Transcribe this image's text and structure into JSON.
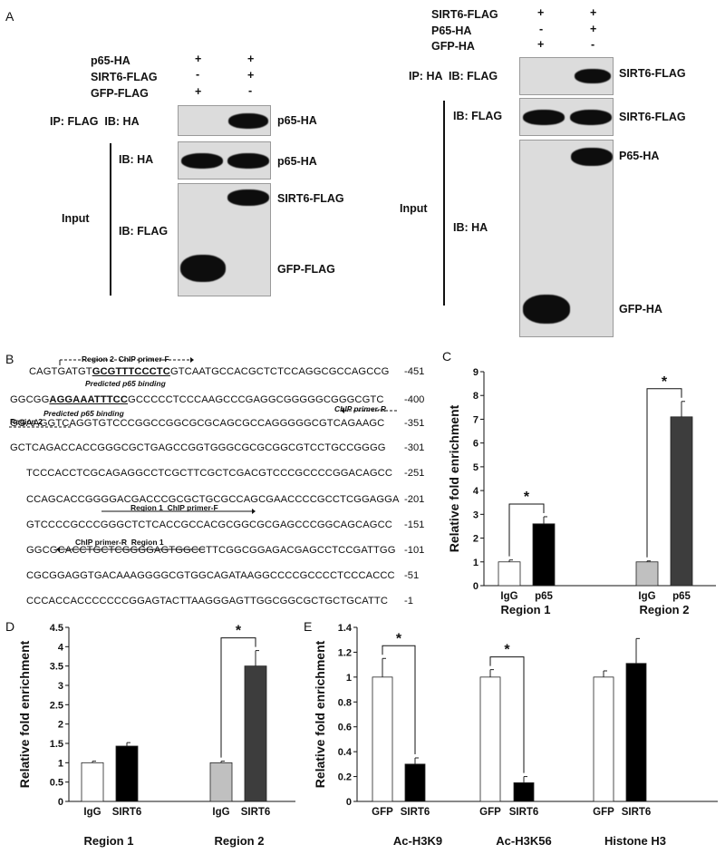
{
  "panel_letters": {
    "a": "A",
    "b": "B",
    "c": "C",
    "d": "D",
    "e": "E"
  },
  "panelA_left": {
    "conditions": [
      {
        "label": "p65-HA",
        "lane1": "+",
        "lane2": "+"
      },
      {
        "label": "SIRT6-FLAG",
        "lane1": "-",
        "lane2": "+"
      },
      {
        "label": "GFP-FLAG",
        "lane1": "+",
        "lane2": "-"
      }
    ],
    "ip_label": "IP: FLAG  IB: HA",
    "input_label": "Input",
    "ib_ha": "IB: HA",
    "ib_flag": "IB: FLAG",
    "band_labels": {
      "ip": "p65-HA",
      "input_ha": "p65-HA",
      "sirt6": "SIRT6-FLAG",
      "gfp": "GFP-FLAG"
    }
  },
  "panelA_right": {
    "conditions": [
      {
        "label": "SIRT6-FLAG",
        "lane1": "+",
        "lane2": "+"
      },
      {
        "label": "P65-HA",
        "lane1": "-",
        "lane2": "+"
      },
      {
        "label": "GFP-HA",
        "lane1": "+",
        "lane2": "-"
      }
    ],
    "ip_label": "IP: HA  IB: FLAG",
    "ib_flag": "IB: FLAG",
    "input_label": "Input",
    "ib_ha": "IB: HA",
    "band_labels": {
      "ip": "SIRT6-FLAG",
      "input_flag": "SIRT6-FLAG",
      "p65": "P65-HA",
      "gfp": "GFP-HA"
    }
  },
  "panelB": {
    "annotations": {
      "region2_primer_f": "Region 2  ChIP primer-F",
      "predicted1": "Predicted p65 binding",
      "predicted2": "Predicted p65 binding",
      "region2_primer_r": "ChIP primer-R",
      "region2_label": "Region 2",
      "region1_primer_f": "Region 1  ChIP primer-F",
      "region1_primer_r": "ChIP primer-R  Region 1"
    },
    "lines": [
      {
        "pre": "CAGTGATGT",
        "motif": "GCGTTTCCCTC",
        "post": "GTCAATGCCACGCTCTCCAGGCGCCAGCCG",
        "num": "-451"
      },
      {
        "pre": "GGCGG",
        "motif": "AGGAAATTTCC",
        "post": "GCCCCCTCCCAAGCCCGAGGCGGGGGCGGGCGTC",
        "num": "-400"
      },
      {
        "pre": "GGAAGGTCAGGTGTCCCGGCCGGCGCGCAGCGCCAGGGGGCGTCAGAAGC",
        "motif": "",
        "post": "",
        "num": "-351"
      },
      {
        "pre": "GCTCAGACCACCGGGCGCTGAGCCGGTGGGCGCGCGGCGTCCTGCCGGGG",
        "motif": "",
        "post": "",
        "num": "-301"
      },
      {
        "pre": "TCCCACCTCGCAGAGGCCTCGCTTCGCTCGACGTCCCGCCCCGGACAGCC",
        "motif": "",
        "post": "",
        "num": "-251"
      },
      {
        "pre": "CCAGCACCGGGGACGACCCGCGCTGCGCCAGCGAACCCCGCCTCGGAGGA",
        "motif": "",
        "post": "",
        "num": "-201"
      },
      {
        "pre": "GTCCCCGCCCGGGCTCTCACCGCCACGCGGCGCGAGCCCGGCAGCAGCC",
        "motif": "",
        "post": "",
        "num": "-151"
      },
      {
        "pre": "GGCGCACCTGCTCGGGGAGTGGCCTTCGGCGGAGACGAGCCTCCGATTGG",
        "motif": "",
        "post": "",
        "num": "-101"
      },
      {
        "pre": "CGCGGAGGTGACAAAGGGGCGTGGCAGATAAGGCCCCGCCCCTCCCACCC",
        "motif": "",
        "post": "",
        "num": "-51"
      },
      {
        "pre": "CCCACCACCCCCCCGGAGTACTTAAGGGAGTTGGCGGCGCTGCTGCATTC",
        "motif": "",
        "post": "",
        "num": "-1"
      }
    ]
  },
  "chart_data": [
    {
      "panel": "C",
      "type": "bar",
      "ylabel": "Relative fold enrichment",
      "ylim": [
        0,
        9
      ],
      "yticks": [
        "0",
        "1",
        "2",
        "3",
        "4",
        "5",
        "6",
        "7",
        "8",
        "9"
      ],
      "groups": [
        "Region 1",
        "Region 2"
      ],
      "bars": [
        {
          "category": "IgG",
          "group": "Region 1",
          "value": 1.0,
          "err": 0.08,
          "color": "#ffffff"
        },
        {
          "category": "p65",
          "group": "Region 1",
          "value": 2.6,
          "err": 0.3,
          "color": "#000000"
        },
        {
          "category": "IgG",
          "group": "Region 2",
          "value": 1.0,
          "err": 0.04,
          "color": "#c0c0c0"
        },
        {
          "category": "p65",
          "group": "Region 2",
          "value": 7.1,
          "err": 0.65,
          "color": "#3d3d3d"
        }
      ],
      "significance": [
        {
          "from": 0,
          "to": 1,
          "label": "*"
        },
        {
          "from": 2,
          "to": 3,
          "label": "*"
        }
      ]
    },
    {
      "panel": "D",
      "type": "bar",
      "ylabel": "Relative fold enrichment",
      "ylim": [
        0,
        4.5
      ],
      "yticks": [
        "0",
        "0.5",
        "1",
        "1.5",
        "2",
        "2.5",
        "3",
        "3.5",
        "4",
        "4.5"
      ],
      "groups": [
        "Region 1",
        "Region 2"
      ],
      "bars": [
        {
          "category": "IgG",
          "group": "Region 1",
          "value": 1.0,
          "err": 0.04,
          "color": "#ffffff"
        },
        {
          "category": "SIRT6",
          "group": "Region 1",
          "value": 1.43,
          "err": 0.09,
          "color": "#000000"
        },
        {
          "category": "IgG",
          "group": "Region 2",
          "value": 1.0,
          "err": 0.04,
          "color": "#c0c0c0"
        },
        {
          "category": "SIRT6",
          "group": "Region 2",
          "value": 3.5,
          "err": 0.4,
          "color": "#3d3d3d"
        }
      ],
      "significance": [
        {
          "from": 2,
          "to": 3,
          "label": "*"
        }
      ]
    },
    {
      "panel": "E",
      "type": "bar",
      "ylabel": "Relative fold enrichment",
      "ylim": [
        0,
        1.4
      ],
      "yticks": [
        "0",
        "0.2",
        "0.4",
        "0.6",
        "0.8",
        "1",
        "1.2",
        "1.4"
      ],
      "groups": [
        "Ac-H3K9",
        "Ac-H3K56",
        "Histone H3"
      ],
      "bars": [
        {
          "category": "GFP",
          "group": "Ac-H3K9",
          "value": 1.0,
          "err": 0.15,
          "color": "#ffffff"
        },
        {
          "category": "SIRT6",
          "group": "Ac-H3K9",
          "value": 0.3,
          "err": 0.05,
          "color": "#000000"
        },
        {
          "category": "GFP",
          "group": "Ac-H3K56",
          "value": 1.0,
          "err": 0.06,
          "color": "#ffffff"
        },
        {
          "category": "SIRT6",
          "group": "Ac-H3K56",
          "value": 0.15,
          "err": 0.05,
          "color": "#000000"
        },
        {
          "category": "GFP",
          "group": "Histone H3",
          "value": 1.0,
          "err": 0.05,
          "color": "#ffffff"
        },
        {
          "category": "SIRT6",
          "group": "Histone H3",
          "value": 1.11,
          "err": 0.2,
          "color": "#000000"
        }
      ],
      "significance": [
        {
          "from": 0,
          "to": 1,
          "label": "*"
        },
        {
          "from": 2,
          "to": 3,
          "label": "*"
        }
      ]
    }
  ]
}
